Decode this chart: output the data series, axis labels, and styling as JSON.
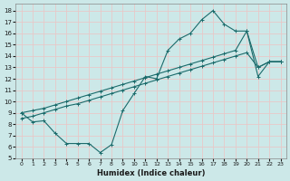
{
  "xlabel": "Humidex (Indice chaleur)",
  "bg_color": "#cce8e8",
  "grid_color": "#e8c8c8",
  "line_color": "#1a6b6b",
  "xlim": [
    -0.5,
    23.5
  ],
  "ylim": [
    5,
    18.6
  ],
  "yticks": [
    5,
    6,
    7,
    8,
    9,
    10,
    11,
    12,
    13,
    14,
    15,
    16,
    17,
    18
  ],
  "xticks": [
    0,
    1,
    2,
    3,
    4,
    5,
    6,
    7,
    8,
    9,
    10,
    11,
    12,
    13,
    14,
    15,
    16,
    17,
    18,
    19,
    20,
    21,
    22,
    23
  ],
  "line1_x": [
    0,
    1,
    2,
    3,
    4,
    5,
    6,
    7,
    8,
    9,
    10,
    11,
    12,
    13,
    14,
    15,
    16,
    17,
    18,
    19,
    20,
    21,
    22,
    23
  ],
  "line1_y": [
    9.0,
    8.2,
    8.3,
    7.2,
    6.3,
    6.3,
    6.3,
    5.5,
    6.2,
    9.2,
    10.7,
    12.2,
    12.0,
    14.5,
    15.5,
    16.0,
    17.2,
    18.0,
    16.8,
    16.2,
    16.2,
    12.2,
    13.5,
    13.5
  ],
  "line2_x": [
    0,
    1,
    2,
    3,
    4,
    5,
    6,
    7,
    8,
    9,
    10,
    11,
    12,
    13,
    14,
    15,
    16,
    17,
    18,
    19,
    20,
    21,
    22,
    23
  ],
  "line2_y": [
    8.5,
    8.7,
    9.0,
    9.3,
    9.6,
    9.8,
    10.1,
    10.4,
    10.7,
    11.0,
    11.3,
    11.6,
    11.9,
    12.2,
    12.5,
    12.8,
    13.1,
    13.4,
    13.7,
    14.0,
    14.3,
    13.0,
    13.5,
    13.5
  ],
  "line3_x": [
    0,
    1,
    2,
    3,
    4,
    5,
    6,
    7,
    8,
    9,
    10,
    11,
    12,
    13,
    14,
    15,
    16,
    17,
    18,
    19,
    20,
    21,
    22,
    23
  ],
  "line3_y": [
    9.0,
    9.2,
    9.4,
    9.7,
    10.0,
    10.3,
    10.6,
    10.9,
    11.2,
    11.5,
    11.8,
    12.1,
    12.4,
    12.7,
    13.0,
    13.3,
    13.6,
    13.9,
    14.2,
    14.5,
    16.2,
    13.0,
    13.5,
    13.5
  ]
}
